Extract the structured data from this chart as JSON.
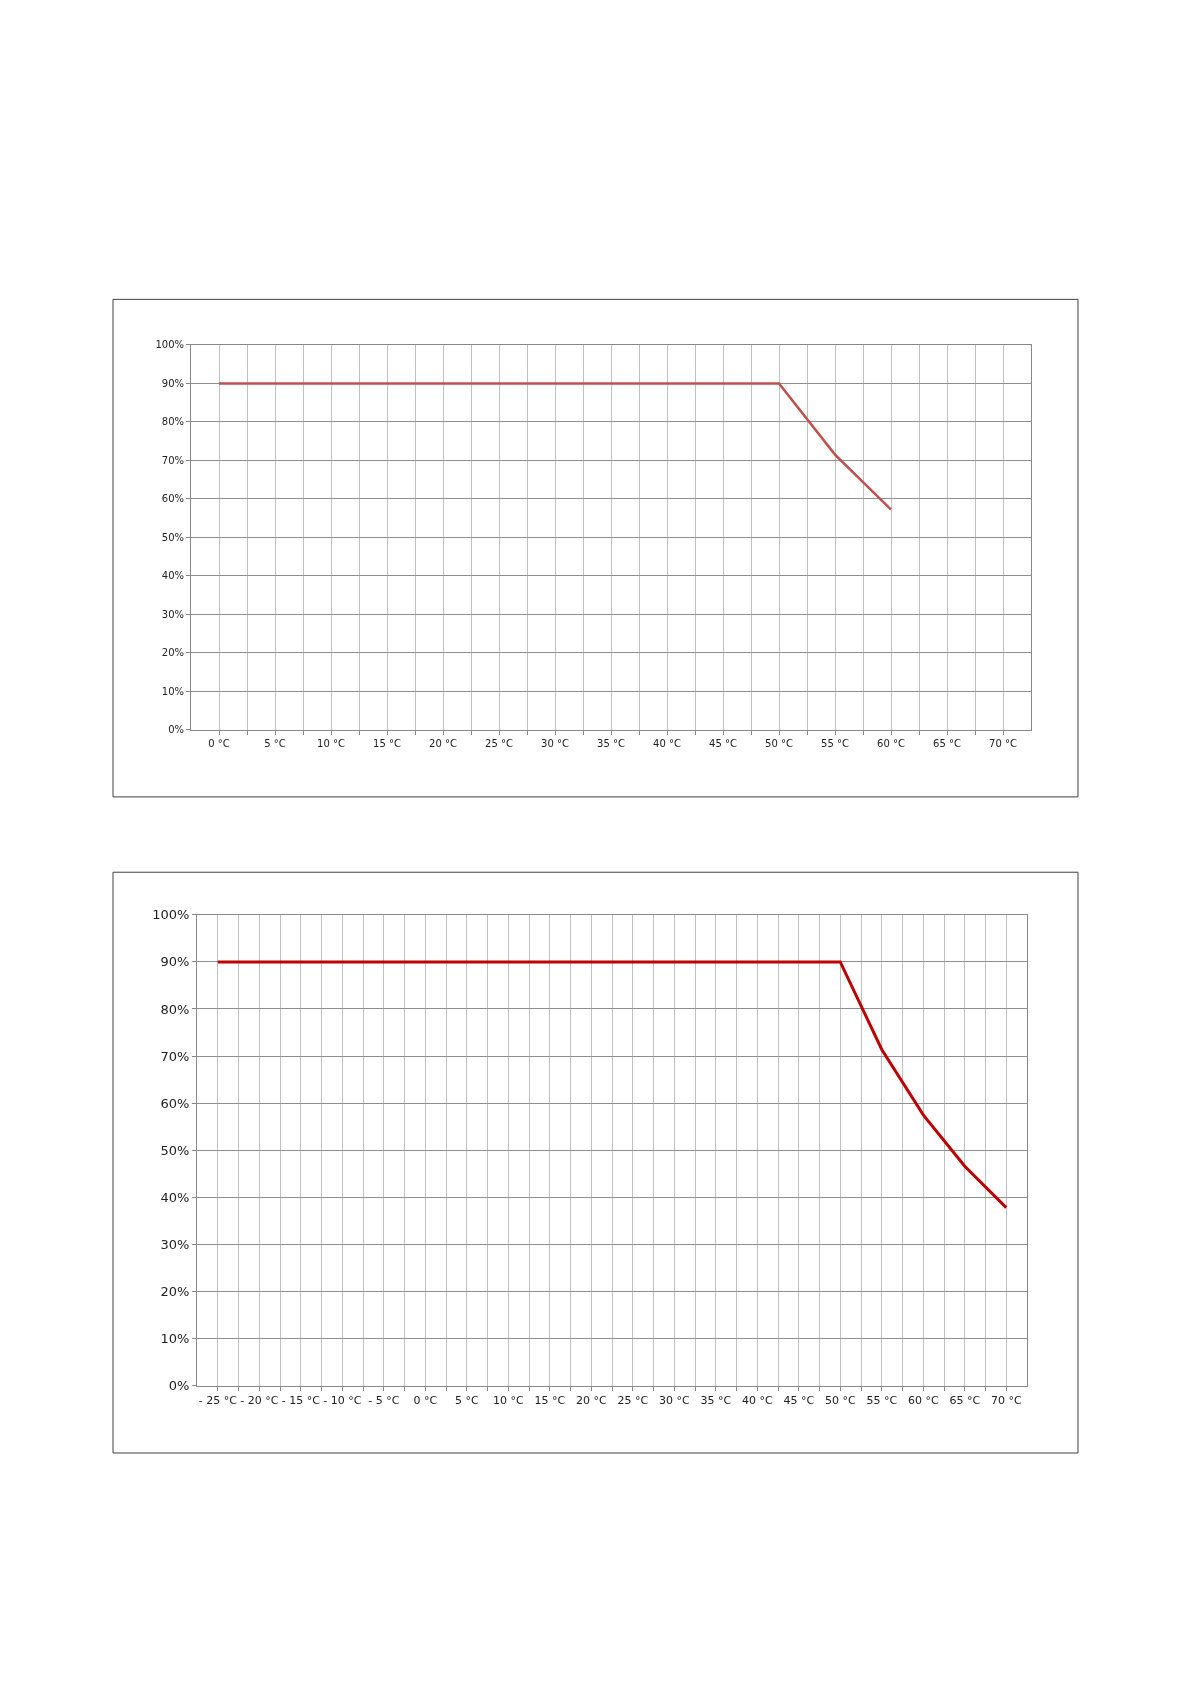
{
  "chart_data": [
    {
      "type": "line",
      "x": [
        0,
        50,
        55,
        60
      ],
      "series": [
        {
          "color": "#c0504d",
          "values": [
            90,
            90,
            71.5,
            57.2
          ]
        }
      ],
      "xlim": [
        -2.5,
        72.5
      ],
      "xticks": [
        {
          "value": 0,
          "label": "0 °C"
        },
        {
          "value": 2.5,
          "label": null
        },
        {
          "value": 5,
          "label": "5 °C"
        },
        {
          "value": 7.5,
          "label": null
        },
        {
          "value": 10,
          "label": "10 °C"
        },
        {
          "value": 12.5,
          "label": null
        },
        {
          "value": 15,
          "label": "15 °C"
        },
        {
          "value": 17.5,
          "label": null
        },
        {
          "value": 20,
          "label": "20 °C"
        },
        {
          "value": 22.5,
          "label": null
        },
        {
          "value": 25,
          "label": "25 °C"
        },
        {
          "value": 27.5,
          "label": null
        },
        {
          "value": 30,
          "label": "30 °C"
        },
        {
          "value": 32.5,
          "label": null
        },
        {
          "value": 35,
          "label": "35 °C"
        },
        {
          "value": 37.5,
          "label": null
        },
        {
          "value": 40,
          "label": "40 °C"
        },
        {
          "value": 42.5,
          "label": null
        },
        {
          "value": 45,
          "label": "45 °C"
        },
        {
          "value": 47.5,
          "label": null
        },
        {
          "value": 50,
          "label": "50 °C"
        },
        {
          "value": 52.5,
          "label": null
        },
        {
          "value": 55,
          "label": "55 °C"
        },
        {
          "value": 57.5,
          "label": null
        },
        {
          "value": 60,
          "label": "60 °C"
        },
        {
          "value": 62.5,
          "label": null
        },
        {
          "value": 65,
          "label": "65 °C"
        },
        {
          "value": 67.5,
          "label": null
        },
        {
          "value": 70,
          "label": "70 °C"
        }
      ],
      "ylim": [
        0,
        100
      ],
      "yticks": [
        {
          "value": 0,
          "label": "0%"
        },
        {
          "value": 10,
          "label": "10%"
        },
        {
          "value": 20,
          "label": "20%"
        },
        {
          "value": 30,
          "label": "30%"
        },
        {
          "value": 40,
          "label": "40%"
        },
        {
          "value": 50,
          "label": "50%"
        },
        {
          "value": 60,
          "label": "60%"
        },
        {
          "value": 70,
          "label": "70%"
        },
        {
          "value": 80,
          "label": "80%"
        },
        {
          "value": 90,
          "label": "90%"
        },
        {
          "value": 100,
          "label": "100%"
        }
      ],
      "grid": true,
      "marker": "none",
      "line_style": "solid"
    },
    {
      "type": "line",
      "x": [
        -25,
        50,
        55,
        60,
        65,
        70
      ],
      "series": [
        {
          "color": "#c00000",
          "values": [
            90,
            90,
            71.4,
            57.5,
            46.6,
            37.8
          ]
        }
      ],
      "xlim": [
        -27.5,
        72.5
      ],
      "xticks": [
        {
          "value": -25,
          "label": "- 25 °C"
        },
        {
          "value": -22.5,
          "label": null
        },
        {
          "value": -20,
          "label": "- 20 °C"
        },
        {
          "value": -17.5,
          "label": null
        },
        {
          "value": -15,
          "label": "- 15 °C"
        },
        {
          "value": -12.5,
          "label": null
        },
        {
          "value": -10,
          "label": "- 10 °C"
        },
        {
          "value": -7.5,
          "label": null
        },
        {
          "value": -5,
          "label": "- 5 °C"
        },
        {
          "value": -2.5,
          "label": null
        },
        {
          "value": 0,
          "label": "0 °C"
        },
        {
          "value": 2.5,
          "label": null
        },
        {
          "value": 5,
          "label": "5 °C"
        },
        {
          "value": 7.5,
          "label": null
        },
        {
          "value": 10,
          "label": "10 °C"
        },
        {
          "value": 12.5,
          "label": null
        },
        {
          "value": 15,
          "label": "15 °C"
        },
        {
          "value": 17.5,
          "label": null
        },
        {
          "value": 20,
          "label": "20 °C"
        },
        {
          "value": 22.5,
          "label": null
        },
        {
          "value": 25,
          "label": "25 °C"
        },
        {
          "value": 27.5,
          "label": null
        },
        {
          "value": 30,
          "label": "30 °C"
        },
        {
          "value": 32.5,
          "label": null
        },
        {
          "value": 35,
          "label": "35 °C"
        },
        {
          "value": 37.5,
          "label": null
        },
        {
          "value": 40,
          "label": "40 °C"
        },
        {
          "value": 42.5,
          "label": null
        },
        {
          "value": 45,
          "label": "45 °C"
        },
        {
          "value": 47.5,
          "label": null
        },
        {
          "value": 50,
          "label": "50 °C"
        },
        {
          "value": 52.5,
          "label": null
        },
        {
          "value": 55,
          "label": "55 °C"
        },
        {
          "value": 57.5,
          "label": null
        },
        {
          "value": 60,
          "label": "60 °C"
        },
        {
          "value": 62.5,
          "label": null
        },
        {
          "value": 65,
          "label": "65 °C"
        },
        {
          "value": 67.5,
          "label": null
        },
        {
          "value": 70,
          "label": "70 °C"
        }
      ],
      "ylim": [
        0,
        100
      ],
      "yticks": [
        {
          "value": 0,
          "label": "0%"
        },
        {
          "value": 10,
          "label": "10%"
        },
        {
          "value": 20,
          "label": "20%"
        },
        {
          "value": 30,
          "label": "30%"
        },
        {
          "value": 40,
          "label": "40%"
        },
        {
          "value": 50,
          "label": "50%"
        },
        {
          "value": 60,
          "label": "60%"
        },
        {
          "value": 70,
          "label": "70%"
        },
        {
          "value": 80,
          "label": "80%"
        },
        {
          "value": 90,
          "label": "90%"
        },
        {
          "value": 100,
          "label": "100%"
        }
      ],
      "grid": true,
      "marker": "none",
      "line_style": "solid"
    }
  ]
}
